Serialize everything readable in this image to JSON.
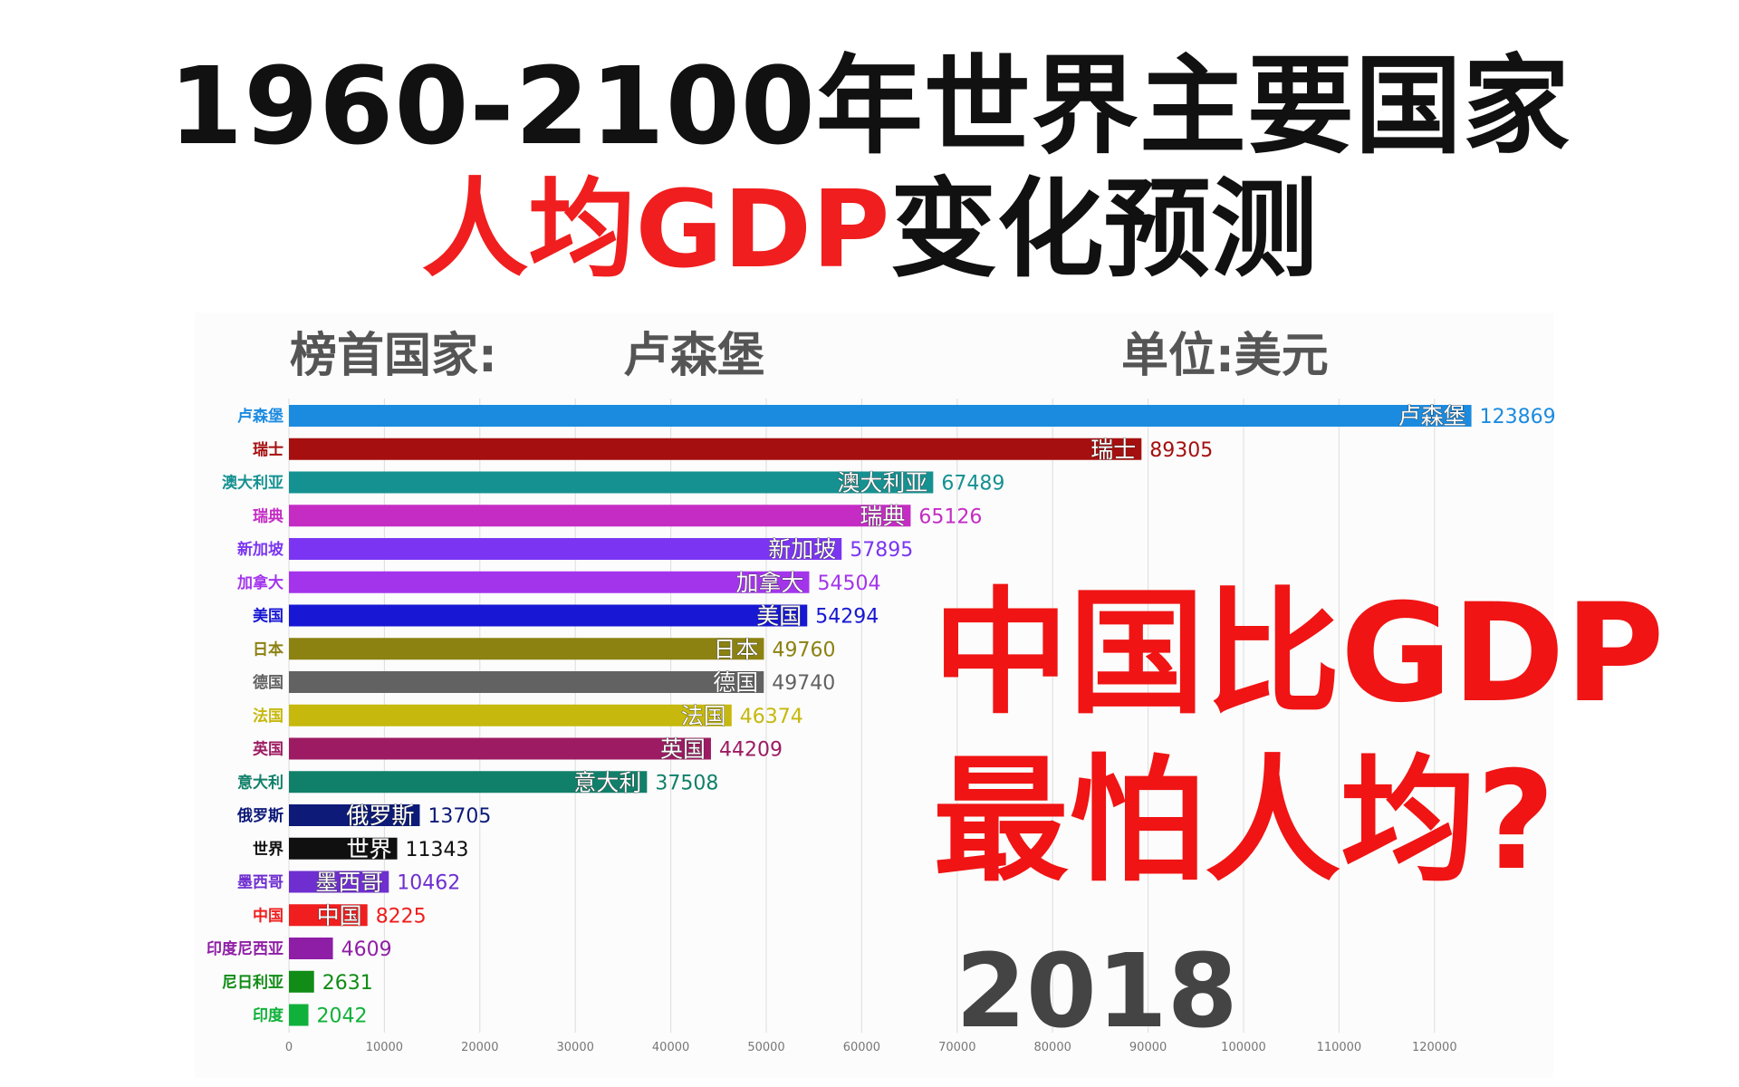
{
  "title": {
    "line1": "1960-2100年世界主要国家",
    "line2_red": "人均GDP",
    "line2_black": "变化预测"
  },
  "header": {
    "leader_label": "榜首国家:",
    "leader_value": "卢森堡",
    "unit": "单位:美元"
  },
  "overlay": {
    "line1": "中国比GDP",
    "line2": "最怕人均?"
  },
  "year": "2018",
  "chart_data": {
    "type": "bar",
    "orientation": "horizontal",
    "categories": [
      "卢森堡",
      "瑞士",
      "澳大利亚",
      "瑞典",
      "新加坡",
      "加拿大",
      "美国",
      "日本",
      "德国",
      "法国",
      "英国",
      "意大利",
      "俄罗斯",
      "世界",
      "墨西哥",
      "中国",
      "印度尼西亚",
      "尼日利亚",
      "印度"
    ],
    "values": [
      123869,
      89305,
      67489,
      65126,
      57895,
      54504,
      54294,
      49760,
      49740,
      46374,
      44209,
      37508,
      13705,
      11343,
      10462,
      8225,
      4609,
      2631,
      2042
    ],
    "colors": [
      "#1b8be0",
      "#a50f0f",
      "#159191",
      "#c42cc4",
      "#7b35f2",
      "#a334ec",
      "#1717d4",
      "#8c8212",
      "#626262",
      "#c6b80c",
      "#9c1b62",
      "#11806a",
      "#0d1a78",
      "#101010",
      "#6f2fd0",
      "#f01e1e",
      "#8f1ea6",
      "#118c16",
      "#10b13a"
    ],
    "xlim": [
      0,
      125000
    ],
    "xticks": [
      0,
      10000,
      20000,
      30000,
      40000,
      50000,
      60000,
      70000,
      80000,
      90000,
      100000,
      110000,
      120000
    ],
    "grid": true
  }
}
